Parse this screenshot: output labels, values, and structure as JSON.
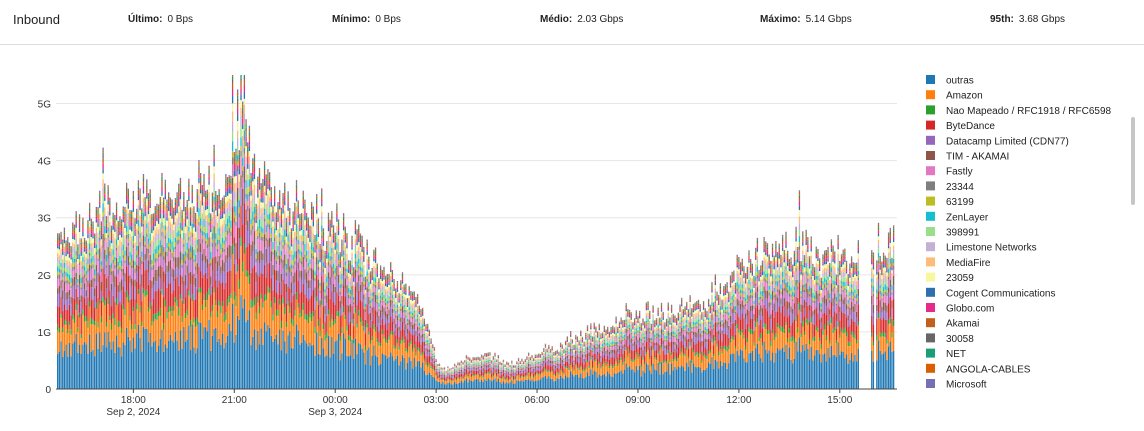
{
  "header": {
    "title": "Inbound",
    "stats": [
      {
        "label": "Último:",
        "value": "0 Bps"
      },
      {
        "label": "Mínimo:",
        "value": "0 Bps"
      },
      {
        "label": "Médio:",
        "value": "2.03 Gbps"
      },
      {
        "label": "Máximo:",
        "value": "5.14 Gbps"
      },
      {
        "label": "95th:",
        "value": "3.68 Gbps"
      }
    ]
  },
  "chart_data": {
    "type": "bar",
    "stacked": true,
    "title": "",
    "xlabel": "",
    "ylabel": "",
    "ylim": [
      0,
      5.5
    ],
    "yticks": [
      {
        "value": 0,
        "label": "0"
      },
      {
        "value": 1,
        "label": "1G"
      },
      {
        "value": 2,
        "label": "2G"
      },
      {
        "value": 3,
        "label": "3G"
      },
      {
        "value": 4,
        "label": "4G"
      },
      {
        "value": 5,
        "label": "5G"
      }
    ],
    "x_range_hours": [
      15.7,
      40.7
    ],
    "x_ticks": [
      {
        "hour": 18,
        "label": "18:00",
        "sublabel": "Sep 2, 2024"
      },
      {
        "hour": 21,
        "label": "21:00",
        "sublabel": ""
      },
      {
        "hour": 24,
        "label": "00:00",
        "sublabel": "Sep 3, 2024"
      },
      {
        "hour": 27,
        "label": "03:00",
        "sublabel": ""
      },
      {
        "hour": 30,
        "label": "06:00",
        "sublabel": ""
      },
      {
        "hour": 33,
        "label": "09:00",
        "sublabel": ""
      },
      {
        "hour": 36,
        "label": "12:00",
        "sublabel": ""
      },
      {
        "hour": 39,
        "label": "15:00",
        "sublabel": ""
      }
    ],
    "total_profile": [
      [
        15.75,
        2.6
      ],
      [
        16.2,
        2.75
      ],
      [
        16.5,
        2.9
      ],
      [
        17.0,
        3.05
      ],
      [
        17.5,
        3.2
      ],
      [
        18.0,
        3.3
      ],
      [
        18.5,
        3.35
      ],
      [
        19.0,
        3.4
      ],
      [
        19.5,
        3.5
      ],
      [
        20.0,
        3.55
      ],
      [
        20.5,
        3.6
      ],
      [
        20.9,
        3.7
      ],
      [
        21.0,
        4.2
      ],
      [
        21.3,
        4.6
      ],
      [
        21.5,
        3.8
      ],
      [
        22.0,
        3.55
      ],
      [
        22.5,
        3.4
      ],
      [
        23.0,
        3.25
      ],
      [
        23.5,
        3.05
      ],
      [
        24.0,
        2.85
      ],
      [
        24.5,
        2.6
      ],
      [
        25.0,
        2.35
      ],
      [
        25.5,
        2.05
      ],
      [
        26.0,
        1.8
      ],
      [
        26.5,
        1.45
      ],
      [
        26.8,
        1.05
      ],
      [
        27.0,
        0.5
      ],
      [
        27.3,
        0.35
      ],
      [
        28.0,
        0.55
      ],
      [
        28.5,
        0.65
      ],
      [
        29.0,
        0.45
      ],
      [
        29.5,
        0.5
      ],
      [
        30.0,
        0.6
      ],
      [
        30.5,
        0.75
      ],
      [
        31.0,
        0.9
      ],
      [
        31.5,
        1.0
      ],
      [
        32.0,
        1.1
      ],
      [
        32.5,
        1.2
      ],
      [
        33.0,
        1.25
      ],
      [
        33.5,
        1.3
      ],
      [
        34.0,
        1.35
      ],
      [
        34.5,
        1.45
      ],
      [
        35.0,
        1.6
      ],
      [
        35.5,
        1.75
      ],
      [
        36.0,
        2.05
      ],
      [
        36.5,
        2.3
      ],
      [
        37.0,
        2.45
      ],
      [
        37.5,
        2.5
      ],
      [
        38.0,
        2.45
      ],
      [
        38.5,
        2.4
      ],
      [
        39.0,
        2.35
      ],
      [
        39.3,
        2.3
      ],
      [
        39.5,
        2.3
      ]
    ],
    "gaps_hours": [
      [
        39.58,
        39.92
      ],
      [
        40.02,
        40.08
      ]
    ],
    "tail_profile": [
      [
        39.92,
        2.45
      ],
      [
        40.3,
        2.55
      ],
      [
        40.6,
        2.5
      ]
    ],
    "spikes": [
      {
        "hour": 17.1,
        "value": 4.18
      },
      {
        "hour": 21.2,
        "value": 5.14
      },
      {
        "hour": 20.95,
        "value": 5.05
      },
      {
        "hour": 21.1,
        "value": 4.9
      },
      {
        "hour": 37.8,
        "value": 3.35
      }
    ],
    "series": [
      {
        "name": "outras",
        "color": "#1f77b4",
        "share": 0.26
      },
      {
        "name": "Amazon",
        "color": "#ff7f0e",
        "share": 0.14
      },
      {
        "name": "Nao Mapeado / RFC1918 / RFC6598",
        "color": "#2ca02c",
        "share": 0.03
      },
      {
        "name": "ByteDance",
        "color": "#d62728",
        "share": 0.11
      },
      {
        "name": "Datacamp Limited (CDN77)",
        "color": "#9467bd",
        "share": 0.07
      },
      {
        "name": "TIM - AKAMAI",
        "color": "#8c564b",
        "share": 0.05
      },
      {
        "name": "Fastly",
        "color": "#e377c2",
        "share": 0.05
      },
      {
        "name": "23344",
        "color": "#7f7f7f",
        "share": 0.02
      },
      {
        "name": "63199",
        "color": "#bcbd22",
        "share": 0.02
      },
      {
        "name": "ZenLayer",
        "color": "#17becf",
        "share": 0.03
      },
      {
        "name": "398991",
        "color": "#98df8a",
        "share": 0.03
      },
      {
        "name": "Limestone Networks",
        "color": "#c5b0d5",
        "share": 0.03
      },
      {
        "name": "MediaFire",
        "color": "#ffbb78",
        "share": 0.03
      },
      {
        "name": "23059",
        "color": "#f7f7a0",
        "share": 0.03
      },
      {
        "name": "Cogent Communications",
        "color": "#2f6fb0",
        "share": 0.02
      },
      {
        "name": "Globo.com",
        "color": "#e7298a",
        "share": 0.02
      },
      {
        "name": "Akamai",
        "color": "#c0601a",
        "share": 0.02
      },
      {
        "name": "30058",
        "color": "#666666",
        "share": 0.01
      },
      {
        "name": "NET",
        "color": "#1b9e77",
        "share": 0.01
      },
      {
        "name": "ANGOLA-CABLES",
        "color": "#d95f02",
        "share": 0.01
      },
      {
        "name": "Microsoft",
        "color": "#7570b3",
        "share": 0.01
      }
    ],
    "legend_position": "right",
    "grid": true
  }
}
